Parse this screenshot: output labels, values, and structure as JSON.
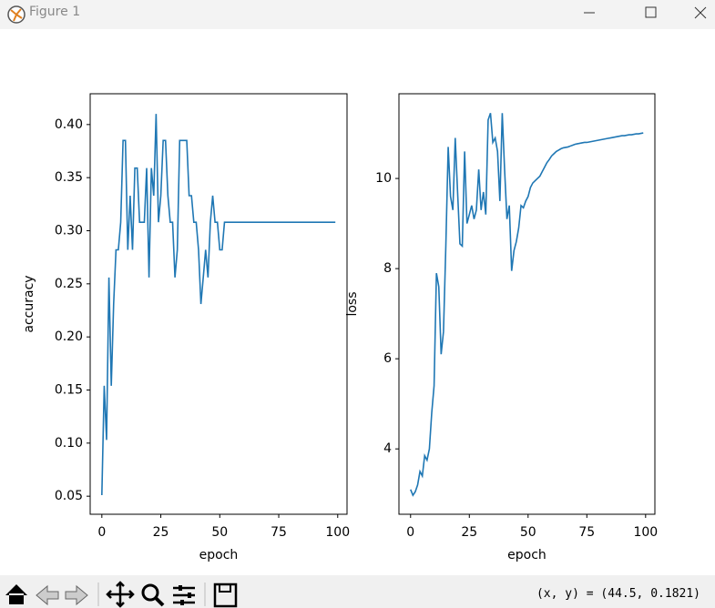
{
  "window": {
    "title": "Figure 1"
  },
  "status": "(x, y) = (44.5, 0.1821)",
  "chart_data": [
    {
      "type": "line",
      "xlabel": "epoch",
      "ylabel": "accuracy",
      "color": "#1f77b4",
      "xlim": [
        -4.95,
        103.95
      ],
      "xticks": [
        0,
        25,
        50,
        75,
        100
      ],
      "ylim": [
        0.033,
        0.429
      ],
      "yticks": [
        0.05,
        {
          "value": 0.1,
          "label": "0.10"
        },
        0.15,
        {
          "value": 0.2,
          "label": "0.20"
        },
        0.25,
        {
          "value": 0.3,
          "label": "0.30"
        },
        0.35,
        {
          "value": 0.4,
          "label": "0.40"
        }
      ],
      "x": [
        0,
        1,
        2,
        3,
        4,
        5,
        6,
        7,
        8,
        9,
        10,
        11,
        12,
        13,
        14,
        15,
        16,
        17,
        18,
        19,
        20,
        21,
        22,
        23,
        24,
        25,
        26,
        27,
        28,
        29,
        30,
        31,
        32,
        33,
        34,
        35,
        36,
        37,
        38,
        39,
        40,
        41,
        42,
        43,
        44,
        45,
        46,
        47,
        48,
        49,
        50,
        51,
        52,
        53,
        54,
        55,
        56,
        57,
        58,
        59,
        60,
        61,
        62,
        63,
        64,
        65,
        66,
        67,
        68,
        69,
        70,
        71,
        72,
        73,
        74,
        75,
        76,
        77,
        78,
        79,
        80,
        81,
        82,
        83,
        84,
        85,
        86,
        87,
        88,
        89,
        90,
        91,
        92,
        93,
        94,
        95,
        96,
        97,
        98,
        99
      ],
      "values": [
        0.051,
        0.154,
        0.103,
        0.256,
        0.154,
        0.231,
        0.282,
        0.282,
        0.308,
        0.385,
        0.385,
        0.282,
        0.333,
        0.282,
        0.359,
        0.359,
        0.308,
        0.308,
        0.308,
        0.359,
        0.256,
        0.359,
        0.333,
        0.41,
        0.308,
        0.333,
        0.385,
        0.385,
        0.333,
        0.308,
        0.308,
        0.256,
        0.282,
        0.385,
        0.385,
        0.385,
        0.385,
        0.333,
        0.333,
        0.308,
        0.308,
        0.282,
        0.231,
        0.256,
        0.282,
        0.256,
        0.308,
        0.333,
        0.308,
        0.308,
        0.282,
        0.282,
        0.308,
        0.308,
        0.308,
        0.308,
        0.308,
        0.308,
        0.308,
        0.308,
        0.308,
        0.308,
        0.308,
        0.308,
        0.308,
        0.308,
        0.308,
        0.308,
        0.308,
        0.308,
        0.308,
        0.308,
        0.308,
        0.308,
        0.308,
        0.308,
        0.308,
        0.308,
        0.308,
        0.308,
        0.308,
        0.308,
        0.308,
        0.308,
        0.308,
        0.308,
        0.308,
        0.308,
        0.308,
        0.308,
        0.308,
        0.308,
        0.308,
        0.308,
        0.308,
        0.308,
        0.308,
        0.308,
        0.308,
        0.308
      ]
    },
    {
      "type": "line",
      "xlabel": "epoch",
      "ylabel": "loss",
      "color": "#1f77b4",
      "xlim": [
        -4.95,
        103.95
      ],
      "xticks": [
        0,
        25,
        50,
        75,
        100
      ],
      "ylim": [
        2.55,
        11.88
      ],
      "yticks": [
        4,
        6,
        8,
        10
      ],
      "x": [
        0,
        1,
        2,
        3,
        4,
        5,
        6,
        7,
        8,
        9,
        10,
        11,
        12,
        13,
        14,
        15,
        16,
        17,
        18,
        19,
        20,
        21,
        22,
        23,
        24,
        25,
        26,
        27,
        28,
        29,
        30,
        31,
        32,
        33,
        34,
        35,
        36,
        37,
        38,
        39,
        40,
        41,
        42,
        43,
        44,
        45,
        46,
        47,
        48,
        49,
        50,
        51,
        52,
        53,
        54,
        55,
        56,
        57,
        58,
        59,
        60,
        61,
        62,
        63,
        64,
        65,
        66,
        67,
        68,
        69,
        70,
        71,
        72,
        73,
        74,
        75,
        76,
        77,
        78,
        79,
        80,
        81,
        82,
        83,
        84,
        85,
        86,
        87,
        88,
        89,
        90,
        91,
        92,
        93,
        94,
        95,
        96,
        97,
        98,
        99
      ],
      "values": [
        3.1,
        2.97,
        3.05,
        3.2,
        3.5,
        3.4,
        3.85,
        3.75,
        4.0,
        4.8,
        5.4,
        7.9,
        7.6,
        6.1,
        6.6,
        8.5,
        10.7,
        9.6,
        9.3,
        10.9,
        9.7,
        8.55,
        8.5,
        10.6,
        9.0,
        9.2,
        9.4,
        9.1,
        9.3,
        10.2,
        9.3,
        9.7,
        9.2,
        11.3,
        11.45,
        10.8,
        10.9,
        10.6,
        9.5,
        11.45,
        10.2,
        9.1,
        9.4,
        7.95,
        8.4,
        8.6,
        8.9,
        9.4,
        9.35,
        9.5,
        9.6,
        9.8,
        9.9,
        9.95,
        10.0,
        10.05,
        10.15,
        10.25,
        10.35,
        10.42,
        10.5,
        10.55,
        10.6,
        10.63,
        10.66,
        10.68,
        10.69,
        10.7,
        10.72,
        10.74,
        10.76,
        10.77,
        10.78,
        10.79,
        10.8,
        10.8,
        10.81,
        10.82,
        10.83,
        10.84,
        10.85,
        10.86,
        10.87,
        10.88,
        10.89,
        10.9,
        10.91,
        10.92,
        10.93,
        10.94,
        10.95,
        10.95,
        10.96,
        10.97,
        10.97,
        10.98,
        10.99,
        10.99,
        11.0,
        11.01
      ]
    }
  ]
}
